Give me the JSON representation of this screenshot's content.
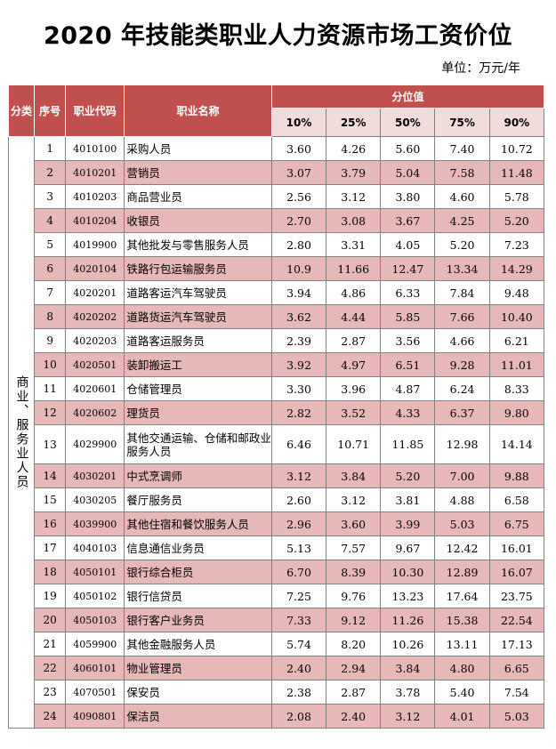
{
  "title": "2020 年技能类职业人力资源市场工资价位",
  "unit": "单位：万元/年",
  "headers": {
    "category": "分类",
    "no": "序号",
    "code": "职业代码",
    "name": "职业名称",
    "percentile_group": "分位值",
    "percentiles": [
      "10%",
      "25%",
      "50%",
      "75%",
      "90%"
    ]
  },
  "category_label": "商业、服务业人员",
  "rows": [
    {
      "no": "1",
      "code": "4010100",
      "name": "采购人员",
      "vals": [
        "3.60",
        "4.26",
        "5.60",
        "7.40",
        "10.72"
      ]
    },
    {
      "no": "2",
      "code": "4010201",
      "name": "营销员",
      "vals": [
        "3.07",
        "3.79",
        "5.04",
        "7.58",
        "11.48"
      ]
    },
    {
      "no": "3",
      "code": "4010203",
      "name": "商品营业员",
      "vals": [
        "2.56",
        "3.12",
        "3.80",
        "4.60",
        "5.78"
      ]
    },
    {
      "no": "4",
      "code": "4010204",
      "name": "收银员",
      "vals": [
        "2.70",
        "3.08",
        "3.67",
        "4.25",
        "5.20"
      ]
    },
    {
      "no": "5",
      "code": "4019900",
      "name": "其他批发与零售服务人员",
      "vals": [
        "2.80",
        "3.31",
        "4.05",
        "5.20",
        "7.23"
      ]
    },
    {
      "no": "6",
      "code": "4020104",
      "name": "铁路行包运输服务员",
      "vals": [
        "10.9",
        "11.66",
        "12.47",
        "13.34",
        "14.29"
      ]
    },
    {
      "no": "7",
      "code": "4020201",
      "name": "道路客运汽车驾驶员",
      "vals": [
        "3.94",
        "4.86",
        "6.33",
        "7.84",
        "9.48"
      ]
    },
    {
      "no": "8",
      "code": "4020202",
      "name": "道路货运汽车驾驶员",
      "vals": [
        "3.62",
        "4.44",
        "5.85",
        "7.66",
        "10.40"
      ]
    },
    {
      "no": "9",
      "code": "4020203",
      "name": "道路客运服务员",
      "vals": [
        "2.39",
        "2.87",
        "3.56",
        "4.66",
        "6.21"
      ]
    },
    {
      "no": "10",
      "code": "4020501",
      "name": "装卸搬运工",
      "vals": [
        "3.92",
        "4.97",
        "6.51",
        "9.28",
        "11.01"
      ]
    },
    {
      "no": "11",
      "code": "4020601",
      "name": "仓储管理员",
      "vals": [
        "3.30",
        "3.96",
        "4.87",
        "6.24",
        "8.33"
      ]
    },
    {
      "no": "12",
      "code": "4020602",
      "name": "理货员",
      "vals": [
        "2.82",
        "3.52",
        "4.33",
        "6.37",
        "9.80"
      ]
    },
    {
      "no": "13",
      "code": "4029900",
      "name": "其他交通运输、仓储和邮政业服务人员",
      "vals": [
        "6.46",
        "10.71",
        "11.85",
        "12.98",
        "14.14"
      ]
    },
    {
      "no": "14",
      "code": "4030201",
      "name": "中式烹调师",
      "vals": [
        "3.12",
        "3.84",
        "5.20",
        "7.00",
        "9.88"
      ]
    },
    {
      "no": "15",
      "code": "4030205",
      "name": "餐厅服务员",
      "vals": [
        "2.60",
        "3.12",
        "3.81",
        "4.88",
        "6.58"
      ]
    },
    {
      "no": "16",
      "code": "4039900",
      "name": "其他住宿和餐饮服务人员",
      "vals": [
        "2.96",
        "3.60",
        "3.99",
        "5.03",
        "6.75"
      ]
    },
    {
      "no": "17",
      "code": "4040103",
      "name": "信息通信业务员",
      "vals": [
        "5.13",
        "7.57",
        "9.67",
        "12.42",
        "16.01"
      ]
    },
    {
      "no": "18",
      "code": "4050101",
      "name": "银行综合柜员",
      "vals": [
        "6.70",
        "8.39",
        "10.30",
        "12.89",
        "16.07"
      ]
    },
    {
      "no": "19",
      "code": "4050102",
      "name": "银行信贷员",
      "vals": [
        "7.25",
        "9.76",
        "13.23",
        "17.64",
        "23.75"
      ]
    },
    {
      "no": "20",
      "code": "4050103",
      "name": "银行客户业务员",
      "vals": [
        "7.33",
        "9.12",
        "11.26",
        "15.38",
        "22.54"
      ]
    },
    {
      "no": "21",
      "code": "4059900",
      "name": "其他金融服务人员",
      "vals": [
        "5.74",
        "8.20",
        "10.26",
        "13.11",
        "17.13"
      ]
    },
    {
      "no": "22",
      "code": "4060101",
      "name": "物业管理员",
      "vals": [
        "2.40",
        "2.94",
        "3.84",
        "4.80",
        "6.65"
      ]
    },
    {
      "no": "23",
      "code": "4070501",
      "name": "保安员",
      "vals": [
        "2.38",
        "2.87",
        "3.78",
        "5.40",
        "7.54"
      ]
    },
    {
      "no": "24",
      "code": "4090801",
      "name": "保洁员",
      "vals": [
        "2.08",
        "2.40",
        "3.12",
        "4.01",
        "5.03"
      ]
    }
  ]
}
